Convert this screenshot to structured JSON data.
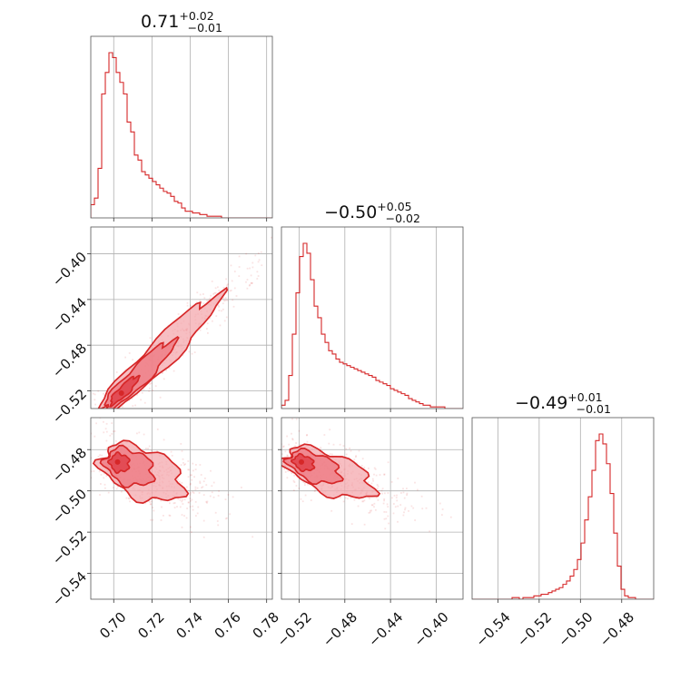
{
  "chart_data": {
    "type": "corner",
    "parameters": [
      {
        "title_value": "0.71",
        "title_plus": "+0.02",
        "title_minus": "−0.01",
        "range": [
          0.688,
          0.783
        ],
        "ticks": [
          0.7,
          0.72,
          0.74,
          0.76,
          0.78
        ],
        "tick_labels": [
          "0.70",
          "0.72",
          "0.74",
          "0.76",
          "0.78"
        ]
      },
      {
        "title_value": "−0.50",
        "title_plus": "+0.05",
        "title_minus": "−0.02",
        "range": [
          -0.5355,
          -0.3765
        ],
        "ticks": [
          -0.52,
          -0.48,
          -0.44,
          -0.4
        ],
        "tick_labels": [
          "−0.52",
          "−0.48",
          "−0.44",
          "−0.40"
        ]
      },
      {
        "title_value": "−0.49",
        "title_plus": "+0.01",
        "title_minus": "−0.01",
        "range": [
          -0.5525,
          -0.4645
        ],
        "ticks": [
          -0.54,
          -0.52,
          -0.5,
          -0.48
        ],
        "tick_labels": [
          "−0.54",
          "−0.52",
          "−0.50",
          "−0.48"
        ]
      }
    ],
    "histograms": [
      {
        "param": 0,
        "bin_start": 0.688,
        "bin_width": 0.0019,
        "counts": [
          8,
          12,
          30,
          75,
          88,
          100,
          97,
          88,
          82,
          75,
          58,
          52,
          38,
          35,
          28,
          26,
          24,
          22,
          20,
          18,
          16,
          15,
          13,
          10,
          9,
          6,
          4,
          4,
          3,
          3,
          2,
          2,
          1,
          1,
          1,
          1,
          0,
          0,
          0,
          0,
          0,
          0,
          0,
          0,
          0,
          0,
          0,
          0,
          0,
          0
        ]
      },
      {
        "param": 1,
        "bin_start": -0.5355,
        "bin_width": 0.00318,
        "counts": [
          2,
          5,
          20,
          45,
          70,
          92,
          100,
          94,
          78,
          62,
          55,
          45,
          40,
          35,
          33,
          30,
          28,
          27,
          26,
          25,
          24,
          23,
          22,
          21,
          20,
          19,
          17,
          16,
          15,
          14,
          12,
          11,
          10,
          9,
          8,
          6,
          5,
          4,
          3,
          2,
          2,
          1,
          1,
          1,
          1,
          0,
          0,
          0,
          0,
          0
        ]
      },
      {
        "param": 2,
        "bin_start": -0.5525,
        "bin_width": 0.00176,
        "counts": [
          0,
          0,
          0,
          0,
          0,
          0,
          0,
          0,
          0,
          0,
          0,
          1,
          1,
          0,
          1,
          1,
          1,
          2,
          2,
          3,
          3,
          4,
          5,
          6,
          7,
          9,
          11,
          14,
          18,
          24,
          34,
          48,
          62,
          78,
          96,
          100,
          94,
          82,
          64,
          40,
          20,
          6,
          2,
          1,
          1,
          0,
          0,
          0,
          0,
          0
        ]
      }
    ],
    "pairs": [
      {
        "x_param": 0,
        "y_param": 1,
        "mode": [
          0.704,
          -0.522
        ],
        "correlation": "strong positive"
      },
      {
        "x_param": 0,
        "y_param": 2,
        "mode": [
          0.702,
          -0.486
        ],
        "correlation": "weak negative"
      },
      {
        "x_param": 1,
        "y_param": 2,
        "mode": [
          -0.518,
          -0.486
        ],
        "correlation": "negative"
      }
    ],
    "grid": true,
    "color": "#d62728",
    "scatter_color": "#f4a8ad"
  }
}
